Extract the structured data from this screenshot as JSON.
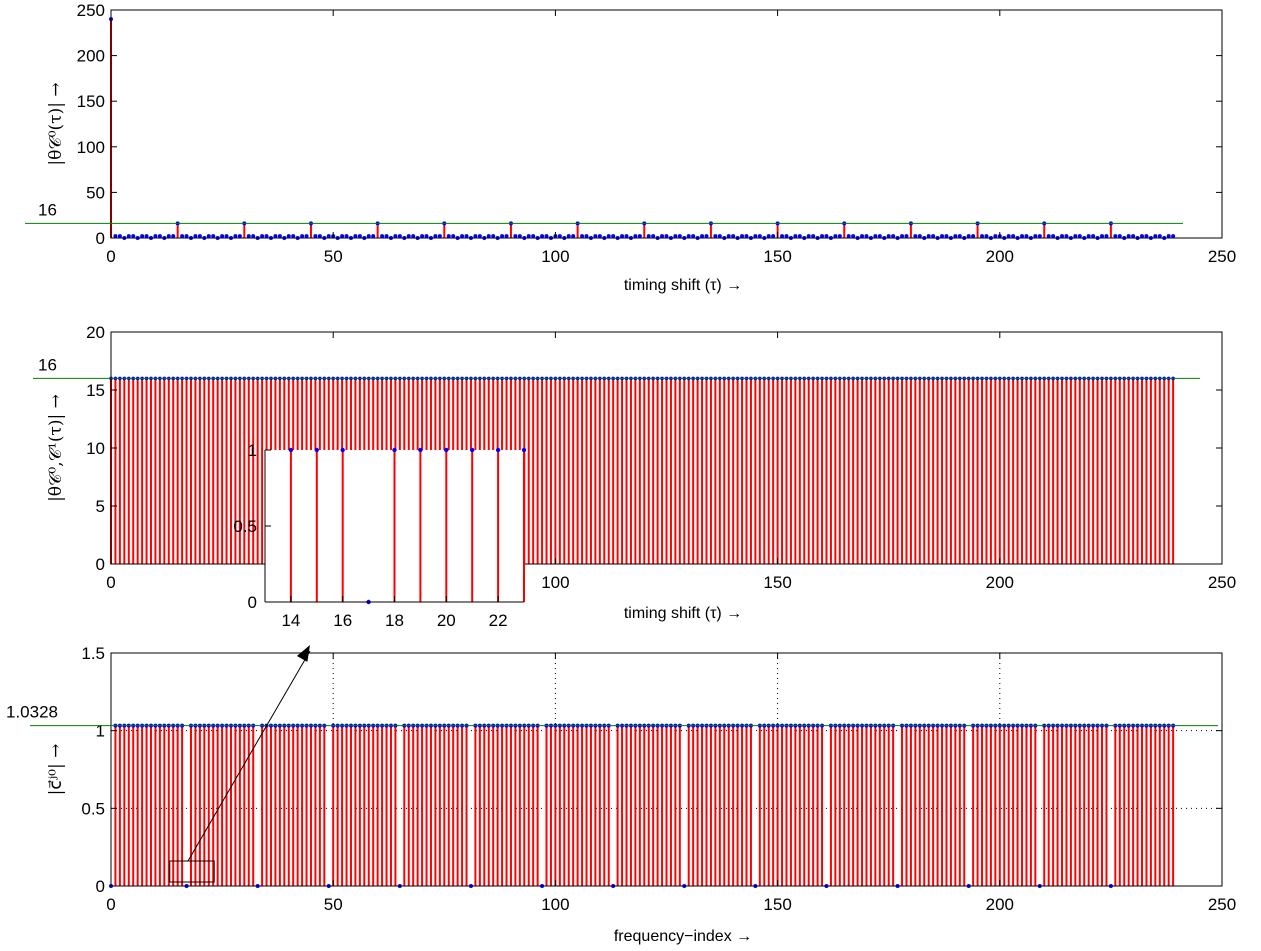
{
  "colors": {
    "stem": "#ff0000",
    "marker": "#0000ff",
    "reference_line": "#008000",
    "axes": "#000000"
  },
  "chart_data": [
    {
      "id": "autocorrelation",
      "type": "stem",
      "xlabel": "timing shift (τ) →",
      "ylabel": "|θ𝒞⁰(τ)| →",
      "xlim": [
        0,
        250
      ],
      "ylim": [
        0,
        250
      ],
      "xticks": [
        "0",
        "50",
        "100",
        "150",
        "200",
        "250"
      ],
      "yticks": [
        "0",
        "50",
        "100",
        "150",
        "200",
        "250"
      ],
      "reference_value": 16,
      "reference_label": "16",
      "x_range": [
        0,
        239
      ],
      "peak": {
        "x": 0,
        "y": 240
      },
      "secondary_peaks": {
        "x": [
          15,
          30,
          45,
          60,
          75,
          90,
          105,
          120,
          135,
          150,
          165,
          180,
          195,
          210,
          225
        ],
        "y": 16
      },
      "baseline_range": [
        0,
        2
      ]
    },
    {
      "id": "crosscorrelation",
      "type": "stem",
      "xlabel": "timing shift (τ) →",
      "ylabel": "|θ𝒞⁰,𝒞¹(τ)| →",
      "xlim": [
        0,
        250
      ],
      "ylim": [
        0,
        20
      ],
      "xticks": [
        "0",
        "50",
        "100",
        "150",
        "200",
        "250"
      ],
      "yticks": [
        "0",
        "5",
        "10",
        "15",
        "20"
      ],
      "reference_value": 16,
      "reference_label": "16",
      "x_range": [
        0,
        239
      ],
      "constant_value": 16
    },
    {
      "id": "inset",
      "type": "stem",
      "xlim": [
        13,
        23
      ],
      "ylim": [
        0,
        1
      ],
      "xticks": [
        "14",
        "16",
        "18",
        "20",
        "22"
      ],
      "yticks": [
        "0",
        "0.5",
        "1"
      ],
      "x": [
        14,
        15,
        16,
        17,
        18,
        19,
        20,
        21,
        22,
        23
      ],
      "values": [
        1,
        1,
        1,
        0,
        1,
        1,
        1,
        1,
        1,
        1
      ]
    },
    {
      "id": "spectrum",
      "type": "stem",
      "xlabel": "frequency−index →",
      "ylabel": "|c⃗ʲ⁰| →",
      "xlim": [
        0,
        250
      ],
      "ylim": [
        0,
        1.5
      ],
      "xticks": [
        "0",
        "50",
        "100",
        "150",
        "200",
        "250"
      ],
      "yticks": [
        "0",
        "0.5",
        "1",
        "1.5"
      ],
      "reference_value": 1.0328,
      "reference_label": "1.0328",
      "x_range": [
        0,
        239
      ],
      "high_value": 1.0328,
      "zero_indices": [
        0,
        17,
        33,
        49,
        65,
        81,
        97,
        113,
        129,
        145,
        161,
        177,
        193,
        209,
        225
      ],
      "grid": "dotted"
    }
  ]
}
